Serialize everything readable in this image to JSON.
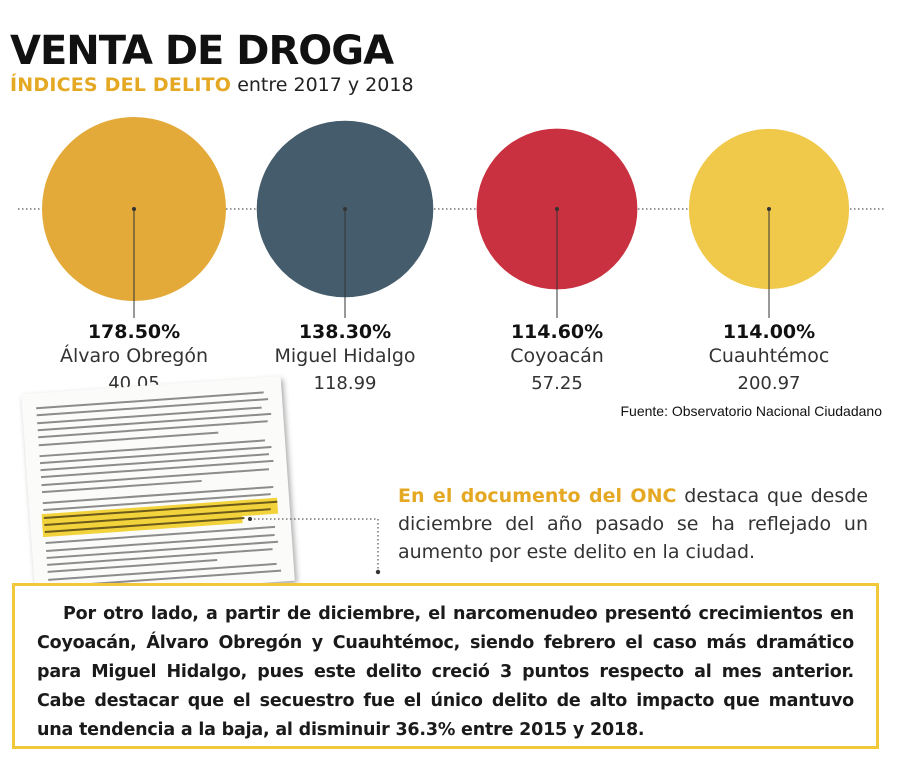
{
  "header": {
    "title": "VENTA DE DROGA",
    "subtitle_accent": "ÍNDICES DEL DELITO",
    "subtitle_rest": " entre 2017 y 2018"
  },
  "chart_data": {
    "type": "bubble",
    "title": "VENTA DE DROGA",
    "subtitle": "ÍNDICES DEL DELITO entre 2017 y 2018",
    "series": [
      {
        "name": "Álvaro Obregón",
        "percent_label": "178.50%",
        "percent": 178.5,
        "value_label": "40.05",
        "value": 40.05,
        "color": "#e3aa3a"
      },
      {
        "name": "Miguel Hidalgo",
        "percent_label": "138.30%",
        "percent": 138.3,
        "value_label": "118.99",
        "value": 118.99,
        "color": "#445c6b"
      },
      {
        "name": "Coyoacán",
        "percent_label": "114.60%",
        "percent": 114.6,
        "value_label": "57.25",
        "value": 57.25,
        "color": "#c93140"
      },
      {
        "name": "Cuauhtémoc",
        "percent_label": "114.00%",
        "percent": 114.0,
        "value_label": "200.97",
        "value": 200.97,
        "color": "#f0c84a"
      }
    ],
    "source": "Fuente: Observatorio Nacional Ciudadano"
  },
  "note": {
    "accent": "En el documento del ONC",
    "text": " destaca que desde diciembre del año pasado se ha reflejado un aumento por este delito en la ciudad."
  },
  "body": {
    "text": "Por otro lado, a partir de diciembre, el narcomenudeo presentó crecimientos en Coyoacán, Álvaro Obregón y Cuauhtémoc, siendo febrero el caso más dramático para Miguel Hidalgo, pues este delito creció 3 puntos respecto al mes anterior. Cabe destacar que el secuestro fue el único delito de alto impacto que mantuvo una tendencia a la baja, al disminuir 36.3% entre 2015 y 2018."
  },
  "colors": {
    "accent": "#e5a823",
    "box_border": "#f0c83a"
  }
}
